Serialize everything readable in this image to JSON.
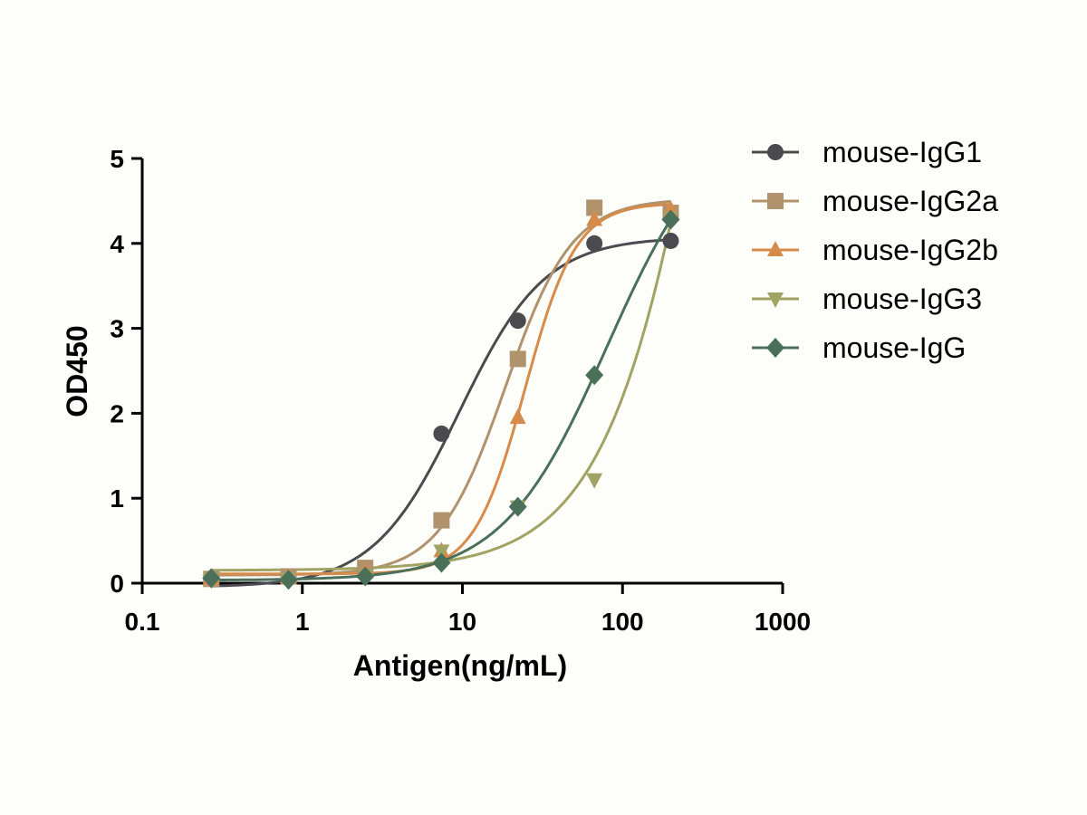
{
  "chart_data": {
    "type": "scatter",
    "title": "",
    "xlabel": "Antigen(ng/mL)",
    "ylabel": "OD450",
    "xscale": "log",
    "xlim": [
      0.1,
      1000
    ],
    "ylim": [
      0,
      5
    ],
    "x_ticks": [
      0.1,
      1,
      10,
      100,
      1000
    ],
    "x_tick_labels": [
      "0.1",
      "1",
      "10",
      "100",
      "1000"
    ],
    "y_ticks": [
      0,
      1,
      2,
      3,
      4,
      5
    ],
    "y_tick_labels": [
      "0",
      "1",
      "2",
      "3",
      "4",
      "5"
    ],
    "grid": false,
    "legend_position": "top-right",
    "fit": "4-parameter logistic curve per series",
    "x": [
      0.27,
      0.82,
      2.47,
      7.4,
      22.2,
      66.7,
      200
    ],
    "series": [
      {
        "name": "mouse-IgG1",
        "marker": "circle",
        "color": "#4a4a4f",
        "values": [
          0.05,
          0.07,
          0.15,
          1.76,
          3.09,
          4.0,
          4.03
        ]
      },
      {
        "name": "mouse-IgG2a",
        "marker": "square",
        "color": "#b0926c",
        "values": [
          0.05,
          0.08,
          0.18,
          0.74,
          2.64,
          4.42,
          4.36
        ]
      },
      {
        "name": "mouse-IgG2b",
        "marker": "triangle-up",
        "color": "#d68b4a",
        "values": [
          0.05,
          0.06,
          0.13,
          0.38,
          1.95,
          4.28,
          4.4
        ]
      },
      {
        "name": "mouse-IgG3",
        "marker": "triangle-down",
        "color": "#a1a362",
        "values": [
          0.04,
          0.05,
          0.09,
          0.38,
          0.9,
          1.22,
          4.3
        ]
      },
      {
        "name": "mouse-IgG",
        "marker": "diamond",
        "color": "#4a7059",
        "values": [
          0.06,
          0.04,
          0.08,
          0.24,
          0.9,
          2.45,
          4.28
        ]
      }
    ]
  }
}
